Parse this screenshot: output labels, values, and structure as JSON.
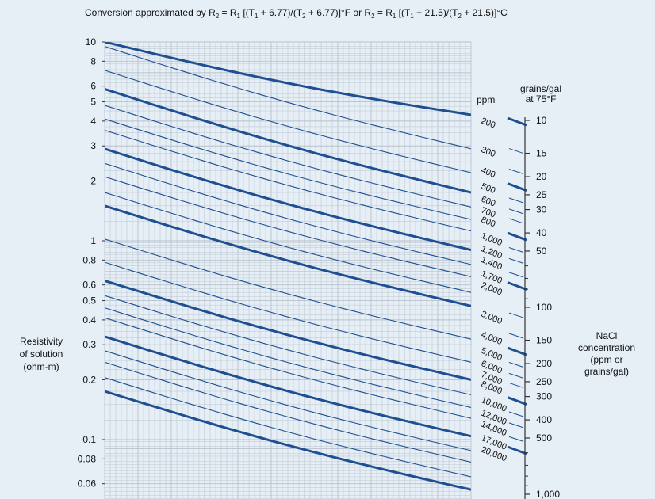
{
  "colors": {
    "background": "#e6eef6",
    "grid": "#b7c2cc",
    "curve": "#1d4f91",
    "text": "#111111"
  },
  "chart_data": {
    "type": "line",
    "title_parts": [
      "Conversion approximated by R",
      "2",
      " = R",
      "1",
      " [(T",
      "1",
      " + 6.77)/(T",
      "2",
      " + 6.77)]°F or  R",
      "2",
      " = R",
      "1",
      " [(T",
      "1",
      " + 21.5)/(T",
      "2",
      " + 21.5)]°C"
    ],
    "ylabel_lines": [
      "Resistivity",
      "of solution",
      "(ohm-m)"
    ],
    "yscale": "log",
    "ylim": [
      0.05,
      10
    ],
    "grid": true,
    "ytick_labels": [
      {
        "label": "10",
        "value": 10
      },
      {
        "label": "8",
        "value": 8
      },
      {
        "label": "6",
        "value": 6
      },
      {
        "label": "5",
        "value": 5
      },
      {
        "label": "4",
        "value": 4
      },
      {
        "label": "3",
        "value": 3
      },
      {
        "label": "2",
        "value": 2
      },
      {
        "label": "1",
        "value": 1
      },
      {
        "label": "0.8",
        "value": 0.8
      },
      {
        "label": "0.6",
        "value": 0.6
      },
      {
        "label": "0.5",
        "value": 0.5
      },
      {
        "label": "0.4",
        "value": 0.4
      },
      {
        "label": "0.3",
        "value": 0.3
      },
      {
        "label": "0.2",
        "value": 0.2
      },
      {
        "label": "0.1",
        "value": 0.1
      },
      {
        "label": "0.08",
        "value": 0.08
      },
      {
        "label": "0.06",
        "value": 0.06
      }
    ],
    "ppm_axis": {
      "title": "ppm",
      "ticks": [
        {
          "label": "200",
          "value": 200
        },
        {
          "label": "300",
          "value": 300
        },
        {
          "label": "400",
          "value": 400
        },
        {
          "label": "500",
          "value": 500
        },
        {
          "label": "600",
          "value": 600
        },
        {
          "label": "700",
          "value": 700
        },
        {
          "label": "800",
          "value": 800
        },
        {
          "label": "1,000",
          "value": 1000
        },
        {
          "label": "1,200",
          "value": 1200
        },
        {
          "label": "1,400",
          "value": 1400
        },
        {
          "label": "1,700",
          "value": 1700
        },
        {
          "label": "2,000",
          "value": 2000
        },
        {
          "label": "3,000",
          "value": 3000
        },
        {
          "label": "4,000",
          "value": 4000
        },
        {
          "label": "5,000",
          "value": 5000
        },
        {
          "label": "6,000",
          "value": 6000
        },
        {
          "label": "7,000",
          "value": 7000
        },
        {
          "label": "8,000",
          "value": 8000
        },
        {
          "label": "10,000",
          "value": 10000
        },
        {
          "label": "12,000",
          "value": 12000
        },
        {
          "label": "14,000",
          "value": 14000
        },
        {
          "label": "17,000",
          "value": 17000
        },
        {
          "label": "20,000",
          "value": 20000
        }
      ]
    },
    "grains_axis": {
      "title_lines": [
        "grains/gal",
        "at 75°F"
      ],
      "ticks": [
        {
          "label": "10",
          "value": 10
        },
        {
          "label": "15",
          "value": 15
        },
        {
          "label": "20",
          "value": 20
        },
        {
          "label": "25",
          "value": 25
        },
        {
          "label": "30",
          "value": 30
        },
        {
          "label": "40",
          "value": 40
        },
        {
          "label": "50",
          "value": 50
        },
        {
          "label": "100",
          "value": 100
        },
        {
          "label": "150",
          "value": 150
        },
        {
          "label": "200",
          "value": 200
        },
        {
          "label": "250",
          "value": 250
        },
        {
          "label": "300",
          "value": 300
        },
        {
          "label": "400",
          "value": 400
        },
        {
          "label": "500",
          "value": 500
        },
        {
          "label": "1,000",
          "value": 1000
        }
      ],
      "minor_ticks": [
        60,
        70,
        80,
        90,
        600,
        700,
        800,
        900
      ]
    },
    "right_label_lines": [
      "NaCl",
      "concentration",
      "(ppm or",
      "grains/gal)"
    ],
    "series": [
      {
        "ppm": 200,
        "values_at_left": [
          10.0,
          4.3
        ]
      },
      {
        "ppm": 300,
        "values_at_left": [
          9.5,
          2.9
        ]
      },
      {
        "ppm": 400,
        "values_at_left": [
          7.2,
          2.2
        ]
      },
      {
        "ppm": 500,
        "values_at_left": [
          5.8,
          1.75
        ]
      },
      {
        "ppm": 600,
        "values_at_left": [
          4.8,
          1.48
        ]
      },
      {
        "ppm": 700,
        "values_at_left": [
          4.1,
          1.28
        ]
      },
      {
        "ppm": 800,
        "values_at_left": [
          3.6,
          1.12
        ]
      },
      {
        "ppm": 1000,
        "values_at_left": [
          2.9,
          0.9
        ]
      },
      {
        "ppm": 1200,
        "values_at_left": [
          2.45,
          0.76
        ]
      },
      {
        "ppm": 1400,
        "values_at_left": [
          2.1,
          0.66
        ]
      },
      {
        "ppm": 1700,
        "values_at_left": [
          1.75,
          0.55
        ]
      },
      {
        "ppm": 2000,
        "values_at_left": [
          1.5,
          0.47
        ]
      },
      {
        "ppm": 3000,
        "values_at_left": [
          1.02,
          0.32
        ]
      },
      {
        "ppm": 4000,
        "values_at_left": [
          0.78,
          0.245
        ]
      },
      {
        "ppm": 5000,
        "values_at_left": [
          0.63,
          0.2
        ]
      },
      {
        "ppm": 6000,
        "values_at_left": [
          0.53,
          0.168
        ]
      },
      {
        "ppm": 7000,
        "values_at_left": [
          0.46,
          0.145
        ]
      },
      {
        "ppm": 8000,
        "values_at_left": [
          0.41,
          0.128
        ]
      },
      {
        "ppm": 10000,
        "values_at_left": [
          0.33,
          0.104
        ]
      },
      {
        "ppm": 12000,
        "values_at_left": [
          0.28,
          0.088
        ]
      },
      {
        "ppm": 14000,
        "values_at_left": [
          0.245,
          0.077
        ]
      },
      {
        "ppm": 17000,
        "values_at_left": [
          0.205,
          0.065
        ]
      },
      {
        "ppm": 20000,
        "values_at_left": [
          0.175,
          0.056
        ]
      }
    ]
  }
}
